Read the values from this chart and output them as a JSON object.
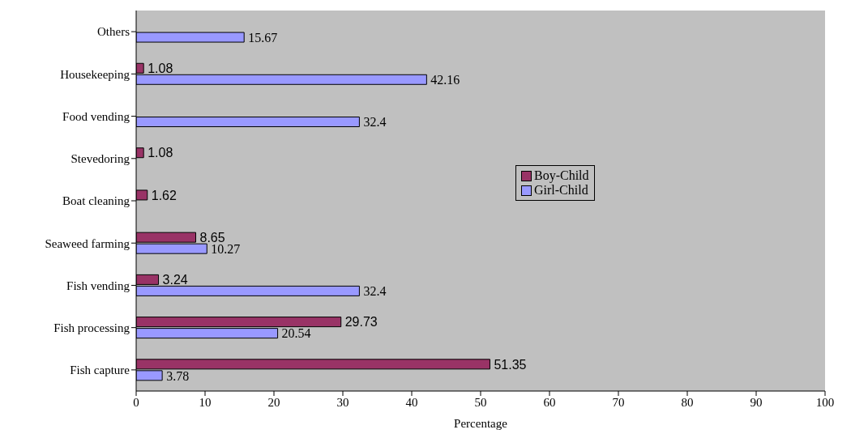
{
  "chart_data": {
    "type": "bar",
    "orientation": "horizontal",
    "xlabel": "Percentage",
    "categories": [
      "Others",
      "Housekeeping",
      "Food vending",
      "Stevedoring",
      "Boat cleaning",
      "Seaweed farming",
      "Fish vending",
      "Fish processing",
      "Fish capture"
    ],
    "series": [
      {
        "name": "Boy-Child",
        "color": "#993366",
        "values": [
          null,
          1.08,
          null,
          1.08,
          1.62,
          8.65,
          3.24,
          29.73,
          51.35
        ]
      },
      {
        "name": "Girl-Child",
        "color": "#9999ff",
        "values": [
          15.67,
          42.16,
          32.4,
          null,
          null,
          10.27,
          32.4,
          20.54,
          3.78
        ]
      }
    ],
    "xlim": [
      0,
      100
    ],
    "xticks": [
      0,
      10,
      20,
      30,
      40,
      50,
      60,
      70,
      80,
      90,
      100
    ],
    "data_labels": true,
    "legend": "right"
  }
}
